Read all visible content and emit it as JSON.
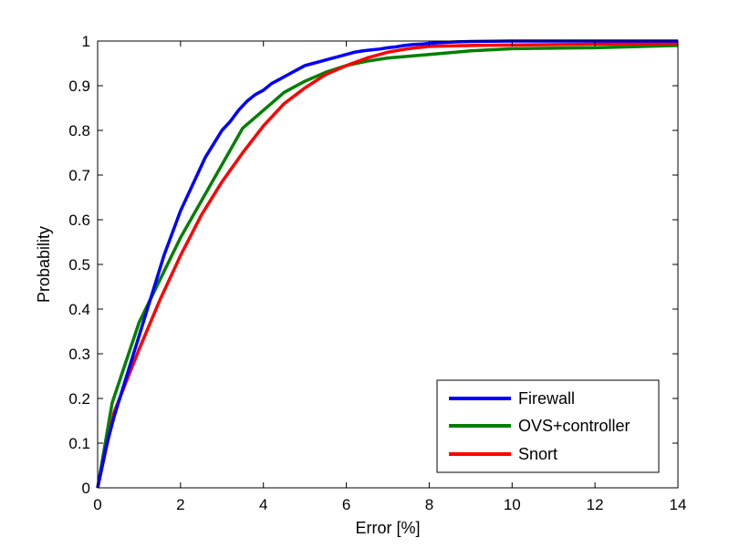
{
  "chart_data": {
    "type": "line",
    "title": "",
    "xlabel": "Error [%]",
    "ylabel": "Probability",
    "xlim": [
      0,
      14
    ],
    "ylim": [
      0,
      1
    ],
    "xticks": [
      "0",
      "2",
      "4",
      "6",
      "8",
      "10",
      "12",
      "14"
    ],
    "yticks": [
      "0",
      "0.1",
      "0.2",
      "0.3",
      "0.4",
      "0.5",
      "0.6",
      "0.7",
      "0.8",
      "0.9",
      "1"
    ],
    "grid": false,
    "legend_position": "bottom-right",
    "series": [
      {
        "name": "Firewall",
        "color": "#0000ff",
        "x": [
          0,
          0.2,
          0.4,
          0.6,
          0.8,
          1.0,
          1.2,
          1.4,
          1.6,
          1.8,
          2.0,
          2.2,
          2.4,
          2.6,
          2.8,
          3.0,
          3.2,
          3.4,
          3.6,
          3.8,
          4.0,
          4.2,
          4.4,
          4.6,
          4.8,
          5.0,
          5.2,
          5.4,
          5.6,
          5.8,
          6.0,
          6.2,
          6.4,
          6.6,
          6.8,
          7.0,
          7.2,
          7.4,
          7.6,
          7.8,
          8.0,
          8.2,
          8.4,
          8.6,
          9.0,
          10,
          11,
          12,
          13,
          14
        ],
        "y": [
          0,
          0.09,
          0.16,
          0.22,
          0.28,
          0.34,
          0.4,
          0.46,
          0.52,
          0.57,
          0.62,
          0.66,
          0.7,
          0.74,
          0.77,
          0.8,
          0.82,
          0.845,
          0.865,
          0.88,
          0.89,
          0.905,
          0.915,
          0.925,
          0.935,
          0.945,
          0.95,
          0.955,
          0.96,
          0.965,
          0.97,
          0.975,
          0.978,
          0.98,
          0.982,
          0.985,
          0.987,
          0.99,
          0.992,
          0.993,
          0.995,
          0.996,
          0.997,
          0.998,
          0.999,
          1.0,
          1.0,
          1.0,
          1.0,
          1.0
        ]
      },
      {
        "name": "OVS+controller",
        "color": "#008000",
        "x": [
          0,
          0.35,
          1.0,
          2.0,
          3.5,
          4.5,
          5.0,
          5.5,
          6.0,
          6.5,
          7.0,
          8.0,
          9.0,
          10.0,
          12.0,
          14.0
        ],
        "y": [
          0,
          0.19,
          0.37,
          0.56,
          0.805,
          0.885,
          0.91,
          0.93,
          0.945,
          0.955,
          0.962,
          0.97,
          0.978,
          0.983,
          0.985,
          0.99
        ]
      },
      {
        "name": "Snort",
        "color": "#ff0000",
        "x": [
          0,
          0.4,
          1.0,
          1.5,
          2.0,
          2.5,
          3.0,
          3.5,
          4.0,
          4.5,
          5.0,
          5.5,
          6.0,
          6.5,
          7.0,
          7.5,
          8.0,
          9.0,
          10.0,
          12.0,
          14.0
        ],
        "y": [
          0,
          0.17,
          0.31,
          0.42,
          0.52,
          0.61,
          0.685,
          0.75,
          0.81,
          0.86,
          0.895,
          0.925,
          0.945,
          0.962,
          0.975,
          0.983,
          0.988,
          0.99,
          0.991,
          0.993,
          0.995
        ]
      }
    ]
  }
}
